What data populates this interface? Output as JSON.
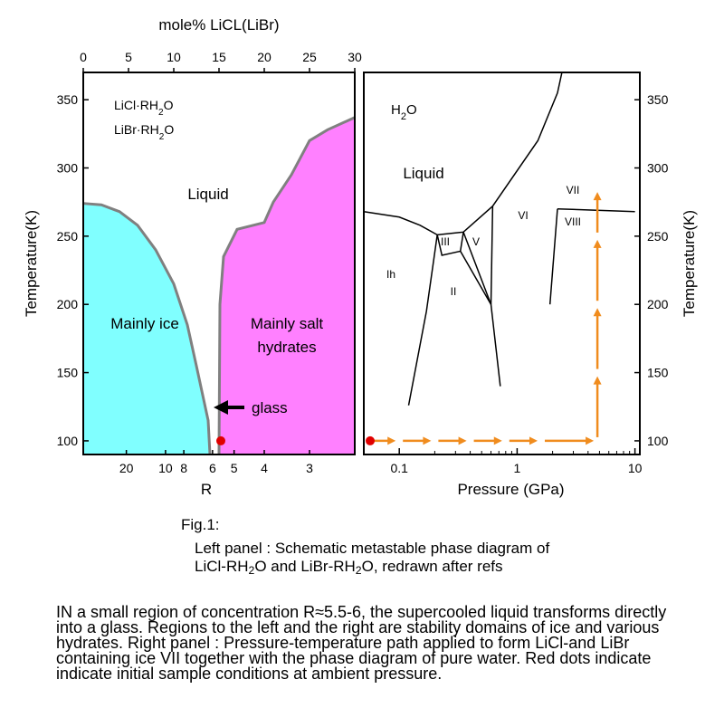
{
  "chart_data": [
    {
      "type": "area",
      "panel": "left",
      "xlabel": "R",
      "x2label": "mole% LiCL(LiBr)",
      "ylabel": "Temperature(K)",
      "x_top_ticks": [
        "0",
        "5",
        "10",
        "15",
        "20",
        "25",
        "30"
      ],
      "x_bottom_ticks": [
        "20",
        "10",
        "8",
        "6",
        "5",
        "4",
        "3"
      ],
      "y_ticks": [
        "100",
        "150",
        "200",
        "250",
        "300",
        "350"
      ],
      "ylim": [
        90,
        370
      ],
      "x_top_range": [
        0,
        30
      ],
      "annotations": {
        "system1": "LiCl·RH",
        "system1_sub": "2",
        "system1_end": "O",
        "system2": "LiBr·RH",
        "system2_sub": "2",
        "system2_end": "O",
        "liquid": "Liquid",
        "ice_region_1": "Mainly ice",
        "salt_region_1": "Mainly salt",
        "salt_region_2": "hydrates",
        "glass": "glass"
      },
      "regions": [
        {
          "name": "Mainly ice",
          "color": "#80ffff",
          "boundary": [
            [
              0,
              274
            ],
            [
              2,
              273
            ],
            [
              4,
              268
            ],
            [
              6,
              258
            ],
            [
              8,
              240
            ],
            [
              10,
              215
            ],
            [
              11.5,
              185
            ],
            [
              12.5,
              155
            ],
            [
              13.8,
              115
            ],
            [
              14,
              90
            ]
          ]
        },
        {
          "name": "Mainly salt hydrates",
          "color": "#ff80ff",
          "boundary": [
            [
              15,
              90
            ],
            [
              15.1,
              200
            ],
            [
              15.5,
              235
            ],
            [
              17,
              255
            ],
            [
              20,
              260
            ],
            [
              21,
              275
            ],
            [
              23,
              295
            ],
            [
              25,
              320
            ],
            [
              27,
              328
            ],
            [
              30,
              337
            ]
          ]
        }
      ],
      "marker": {
        "x": 15.2,
        "y": 100,
        "color": "#e00000"
      }
    },
    {
      "type": "line",
      "panel": "right",
      "xlabel": "Pressure (GPa)",
      "ylabel": "Temperature(K)",
      "x_scale": "log",
      "xlim": [
        0.05,
        11
      ],
      "ylim": [
        90,
        370
      ],
      "x_ticks": [
        "0.1",
        "1",
        "10"
      ],
      "y_ticks": [
        "100",
        "150",
        "200",
        "250",
        "300",
        "350"
      ],
      "annotations": {
        "title": "H",
        "title_sub": "2",
        "title_end": "O",
        "liquid": "Liquid",
        "phase_ih": "Ih",
        "phase_ii": "II",
        "phase_iii": "III",
        "phase_v": "V",
        "phase_vi": "VI",
        "phase_vii": "VII",
        "phase_viii": "VIII"
      },
      "phase_lines": [
        [
          [
            0.05,
            268
          ],
          [
            0.1,
            264
          ],
          [
            0.15,
            258
          ],
          [
            0.21,
            251
          ]
        ],
        [
          [
            0.21,
            251
          ],
          [
            0.35,
            253
          ],
          [
            0.62,
            272
          ],
          [
            1.5,
            320
          ],
          [
            2.2,
            355
          ],
          [
            2.4,
            370
          ]
        ],
        [
          [
            0.21,
            251
          ],
          [
            0.2,
            238
          ],
          [
            0.17,
            195
          ],
          [
            0.12,
            126
          ]
        ],
        [
          [
            0.21,
            251
          ],
          [
            0.23,
            236
          ],
          [
            0.33,
            239
          ],
          [
            0.35,
            253
          ]
        ],
        [
          [
            0.33,
            239
          ],
          [
            0.6,
            200
          ],
          [
            0.72,
            140
          ]
        ],
        [
          [
            0.35,
            253
          ],
          [
            0.6,
            200
          ]
        ],
        [
          [
            0.62,
            272
          ],
          [
            0.6,
            200
          ]
        ],
        [
          [
            2.2,
            270
          ],
          [
            1.9,
            200
          ]
        ],
        [
          [
            2.2,
            270
          ],
          [
            10,
            268
          ]
        ]
      ],
      "path": [
        [
          0.05,
          100
        ],
        [
          0.1,
          100
        ],
        [
          0.2,
          100
        ],
        [
          0.4,
          100
        ],
        [
          0.8,
          100
        ],
        [
          1.6,
          100
        ],
        [
          4.8,
          100
        ],
        [
          4.8,
          150
        ],
        [
          4.8,
          200
        ],
        [
          4.8,
          250
        ],
        [
          4.8,
          285
        ]
      ],
      "marker": {
        "x": 0.05,
        "y": 100,
        "color": "#e00000"
      },
      "path_color": "#f08c1e"
    }
  ],
  "caption": {
    "fig": "Fig.1:",
    "line1": "Left panel : Schematic metastable phase diagram of",
    "line2_a": "LiCl-RH",
    "line2_sub1": "2",
    "line2_b": "O and LiBr-RH",
    "line2_sub2": "2",
    "line2_c": "O, redrawn after refs",
    "body": [
      "IN a small region of concentration R≈5.5-6, the supercooled liquid transforms directly",
      "into a glass. Regions to the left and the right are stability domains of ice and various",
      "hydrates. Right panel : Pressure-temperature path applied to form LiCl-and LiBr",
      "containing ice VII together with the phase diagram of pure water. Red dots indicate",
      " indicate initial sample conditions at ambient pressure."
    ]
  }
}
